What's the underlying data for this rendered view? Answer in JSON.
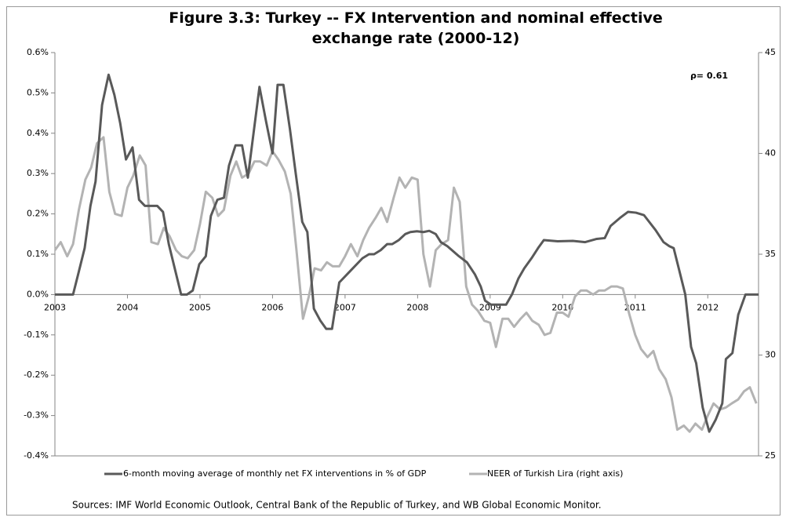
{
  "chart_data": {
    "type": "line",
    "title": "Figure 3.3: Turkey -- FX Intervention and nominal effective exchange rate (2000-12)",
    "annotation": "ρ= 0.61",
    "source": "Sources: IMF World Economic Outlook, Central Bank of the Republic of Turkey, and WB Global Economic Monitor.",
    "legend": "bottom",
    "xlim": [
      2003,
      2012.7
    ],
    "xticks": [
      2003,
      2004,
      2005,
      2006,
      2007,
      2008,
      2009,
      2010,
      2011,
      2012
    ],
    "ylim": [
      -0.4,
      0.6
    ],
    "yticks": [
      {
        "value": -0.4,
        "label": "-0.4%"
      },
      {
        "value": -0.3,
        "label": "-0.3%"
      },
      {
        "value": -0.2,
        "label": "-0.2%"
      },
      {
        "value": -0.1,
        "label": "-0.1%"
      },
      {
        "value": 0.0,
        "label": "0.0%"
      },
      {
        "value": 0.1,
        "label": "0.1%"
      },
      {
        "value": 0.2,
        "label": "0.2%"
      },
      {
        "value": 0.3,
        "label": "0.3%"
      },
      {
        "value": 0.4,
        "label": "0.4%"
      },
      {
        "value": 0.5,
        "label": "0.5%"
      },
      {
        "value": 0.6,
        "label": "0.6%"
      }
    ],
    "y2lim": [
      25,
      45
    ],
    "y2ticks": [
      25,
      30,
      35,
      40,
      45
    ],
    "series": [
      {
        "name": "6-month moving average of monthly net FX interventions in % of GDP",
        "color": "#595959",
        "axis": "y",
        "x": [
          2003.0,
          2003.25,
          2003.32,
          2003.41,
          2003.49,
          2003.56,
          2003.65,
          2003.74,
          2003.82,
          2003.9,
          2003.98,
          2004.07,
          2004.16,
          2004.24,
          2004.41,
          2004.49,
          2004.57,
          2004.74,
          2004.82,
          2004.9,
          2004.99,
          2005.08,
          2005.15,
          2005.24,
          2005.33,
          2005.4,
          2005.49,
          2005.58,
          2005.66,
          2005.82,
          2005.91,
          2006.0,
          2006.07,
          2006.15,
          2006.24,
          2006.32,
          2006.41,
          2006.48,
          2006.57,
          2006.66,
          2006.74,
          2006.82,
          2006.92,
          2007.08,
          2007.24,
          2007.33,
          2007.4,
          2007.49,
          2007.58,
          2007.65,
          2007.74,
          2007.83,
          2007.9,
          2007.99,
          2008.08,
          2008.16,
          2008.25,
          2008.32,
          2008.41,
          2008.57,
          2008.68,
          2008.79,
          2008.87,
          2008.93,
          2009.01,
          2009.22,
          2009.3,
          2009.39,
          2009.47,
          2009.57,
          2009.66,
          2009.74,
          2009.93,
          2010.14,
          2010.31,
          2010.47,
          2010.58,
          2010.66,
          2010.79,
          2010.9,
          2011.01,
          2011.12,
          2011.28,
          2011.39,
          2011.47,
          2011.53,
          2011.6,
          2011.69,
          2011.77,
          2011.84,
          2011.93,
          2012.02,
          2012.11,
          2012.2,
          2012.25,
          2012.34,
          2012.42,
          2012.52,
          2012.7
        ],
        "values": [
          0,
          0,
          0.05,
          0.115,
          0.22,
          0.28,
          0.47,
          0.545,
          0.495,
          0.425,
          0.335,
          0.365,
          0.235,
          0.22,
          0.22,
          0.205,
          0.125,
          0,
          0,
          0.01,
          0.075,
          0.095,
          0.195,
          0.235,
          0.24,
          0.32,
          0.37,
          0.37,
          0.29,
          0.515,
          0.43,
          0.35,
          0.52,
          0.52,
          0.41,
          0.3,
          0.18,
          0.155,
          -0.035,
          -0.065,
          -0.085,
          -0.085,
          0.03,
          0.06,
          0.09,
          0.1,
          0.1,
          0.11,
          0.125,
          0.125,
          0.135,
          0.15,
          0.155,
          0.157,
          0.155,
          0.158,
          0.15,
          0.13,
          0.12,
          0.095,
          0.08,
          0.05,
          0.02,
          -0.015,
          -0.025,
          -0.025,
          0,
          0.04,
          0.065,
          0.09,
          0.115,
          0.135,
          0.132,
          0.133,
          0.13,
          0.138,
          0.14,
          0.17,
          0.19,
          0.205,
          0.203,
          0.197,
          0.16,
          0.13,
          0.12,
          0.115,
          0.065,
          0,
          -0.13,
          -0.17,
          -0.28,
          -0.34,
          -0.31,
          -0.27,
          -0.16,
          -0.145,
          -0.05,
          0,
          0
        ]
      },
      {
        "name": "NEER of Turkish Lira (right axis)",
        "color": "#b3b3b3",
        "axis": "y2",
        "x": [
          2003,
          2003.08,
          2003.17,
          2003.25,
          2003.33,
          2003.42,
          2003.5,
          2003.58,
          2003.67,
          2003.75,
          2003.83,
          2003.92,
          2004,
          2004.08,
          2004.17,
          2004.25,
          2004.33,
          2004.42,
          2004.5,
          2004.58,
          2004.67,
          2004.75,
          2004.83,
          2004.92,
          2005,
          2005.08,
          2005.17,
          2005.25,
          2005.33,
          2005.42,
          2005.5,
          2005.58,
          2005.67,
          2005.75,
          2005.83,
          2005.92,
          2006,
          2006.08,
          2006.17,
          2006.25,
          2006.33,
          2006.42,
          2006.5,
          2006.58,
          2006.67,
          2006.75,
          2006.83,
          2006.92,
          2007,
          2007.08,
          2007.17,
          2007.25,
          2007.33,
          2007.42,
          2007.5,
          2007.58,
          2007.67,
          2007.75,
          2007.83,
          2007.92,
          2008,
          2008.08,
          2008.17,
          2008.25,
          2008.33,
          2008.42,
          2008.5,
          2008.58,
          2008.67,
          2008.75,
          2008.83,
          2008.92,
          2009,
          2009.08,
          2009.17,
          2009.25,
          2009.33,
          2009.42,
          2009.5,
          2009.58,
          2009.67,
          2009.75,
          2009.83,
          2009.92,
          2010,
          2010.08,
          2010.17,
          2010.25,
          2010.33,
          2010.42,
          2010.5,
          2010.58,
          2010.67,
          2010.75,
          2010.83,
          2010.92,
          2011,
          2011.08,
          2011.17,
          2011.25,
          2011.33,
          2011.42,
          2011.5,
          2011.58,
          2011.67,
          2011.75,
          2011.83,
          2011.92,
          2012,
          2012.08,
          2012.17,
          2012.25,
          2012.33,
          2012.42,
          2012.5,
          2012.58,
          2012.67
        ],
        "values": [
          35.2,
          35.6,
          34.9,
          35.5,
          37.2,
          38.7,
          39.3,
          40.5,
          40.8,
          38.1,
          37.0,
          36.9,
          38.3,
          38.9,
          39.9,
          39.4,
          35.6,
          35.5,
          36.3,
          35.9,
          35.2,
          34.9,
          34.8,
          35.2,
          36.5,
          38.1,
          37.8,
          36.9,
          37.2,
          38.9,
          39.6,
          38.8,
          39.0,
          39.6,
          39.6,
          39.4,
          40.1,
          39.7,
          39.1,
          38.0,
          35.2,
          31.8,
          32.9,
          34.3,
          34.2,
          34.6,
          34.4,
          34.4,
          34.9,
          35.5,
          34.9,
          35.7,
          36.3,
          36.8,
          37.3,
          36.6,
          37.8,
          38.8,
          38.3,
          38.8,
          38.7,
          35.0,
          33.4,
          35.2,
          35.5,
          35.7,
          38.3,
          37.6,
          33.4,
          32.5,
          32.2,
          31.7,
          31.6,
          30.4,
          31.8,
          31.8,
          31.4,
          31.8,
          32.1,
          31.7,
          31.5,
          31.0,
          31.1,
          32.1,
          32.1,
          31.9,
          32.9,
          33.2,
          33.2,
          33.0,
          33.2,
          33.2,
          33.4,
          33.4,
          33.3,
          32.0,
          31.0,
          30.3,
          29.9,
          30.2,
          29.3,
          28.8,
          27.9,
          26.3,
          26.5,
          26.2,
          26.6,
          26.3,
          27.0,
          27.6,
          27.3,
          27.4,
          27.6,
          27.8,
          28.2,
          28.4,
          27.6
        ]
      }
    ]
  }
}
